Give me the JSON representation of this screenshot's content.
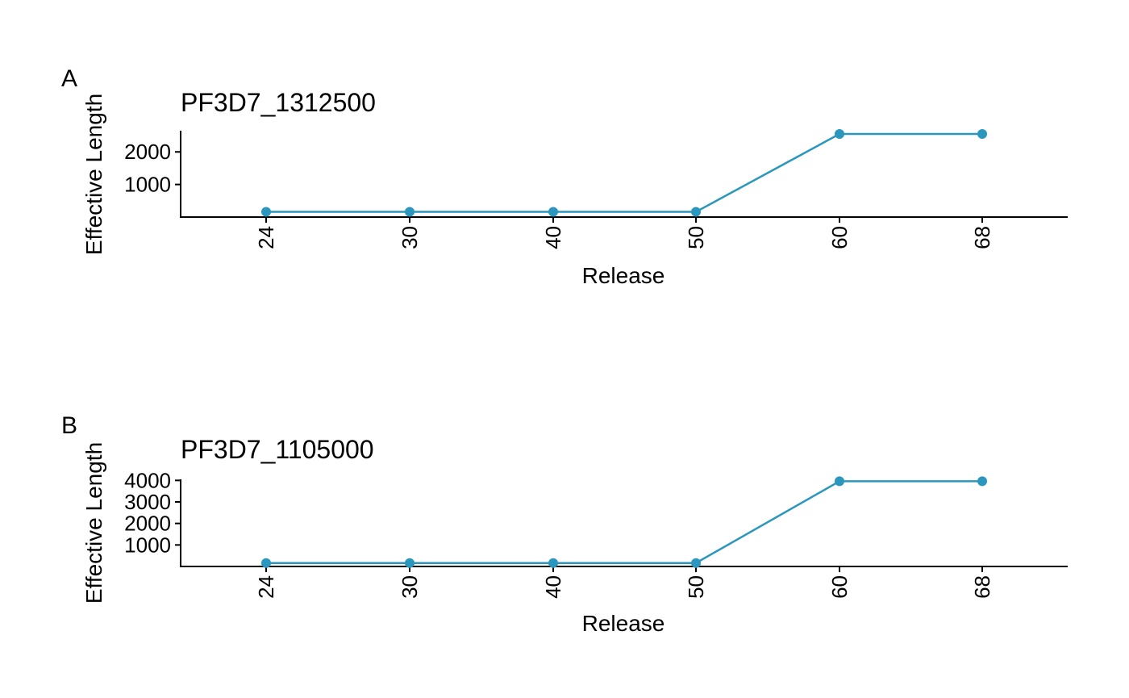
{
  "chart_data": [
    {
      "type": "line",
      "panel_tag": "A",
      "title": "PF3D7_1312500",
      "xlabel": "Release",
      "ylabel": "Effective Length",
      "categories": [
        "24",
        "30",
        "40",
        "50",
        "60",
        "68"
      ],
      "values": [
        160,
        160,
        160,
        160,
        2550,
        2550
      ],
      "yticks": [
        1000,
        2000
      ],
      "ylim": [
        0,
        2650
      ],
      "grid": false,
      "color": "#2b96be"
    },
    {
      "type": "line",
      "panel_tag": "B",
      "title": "PF3D7_1105000",
      "xlabel": "Release",
      "ylabel": "Effective Length",
      "categories": [
        "24",
        "30",
        "40",
        "50",
        "60",
        "68"
      ],
      "values": [
        160,
        160,
        160,
        160,
        3960,
        3960
      ],
      "yticks": [
        1000,
        2000,
        3000,
        4000
      ],
      "ylim": [
        0,
        4050
      ],
      "grid": false,
      "color": "#2b96be"
    }
  ]
}
